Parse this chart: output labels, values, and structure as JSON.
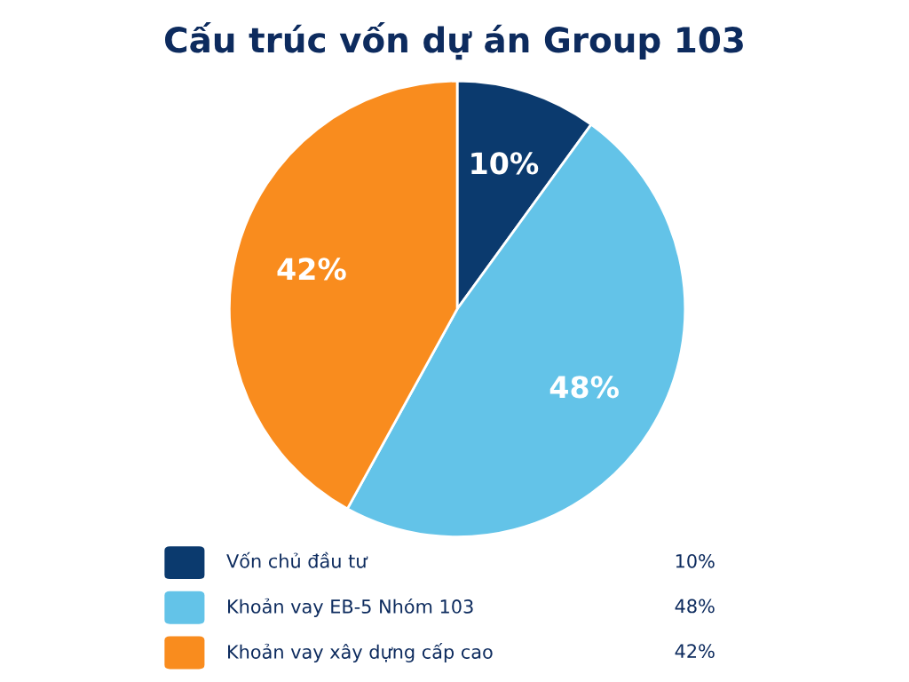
{
  "chart_data": {
    "type": "pie",
    "title": "Cấu trúc vốn dự án Group 103",
    "categories": [
      "Vốn chủ đầu tư",
      "Khoản vay EB-5 Nhóm 103",
      "Khoản vay xây dựng cấp cao"
    ],
    "values": [
      10,
      48,
      42
    ],
    "colors": [
      "#0b3a6e",
      "#63c3e8",
      "#f98c1e"
    ],
    "value_labels": [
      "10%",
      "48%",
      "42%"
    ],
    "legend": "bottom"
  }
}
